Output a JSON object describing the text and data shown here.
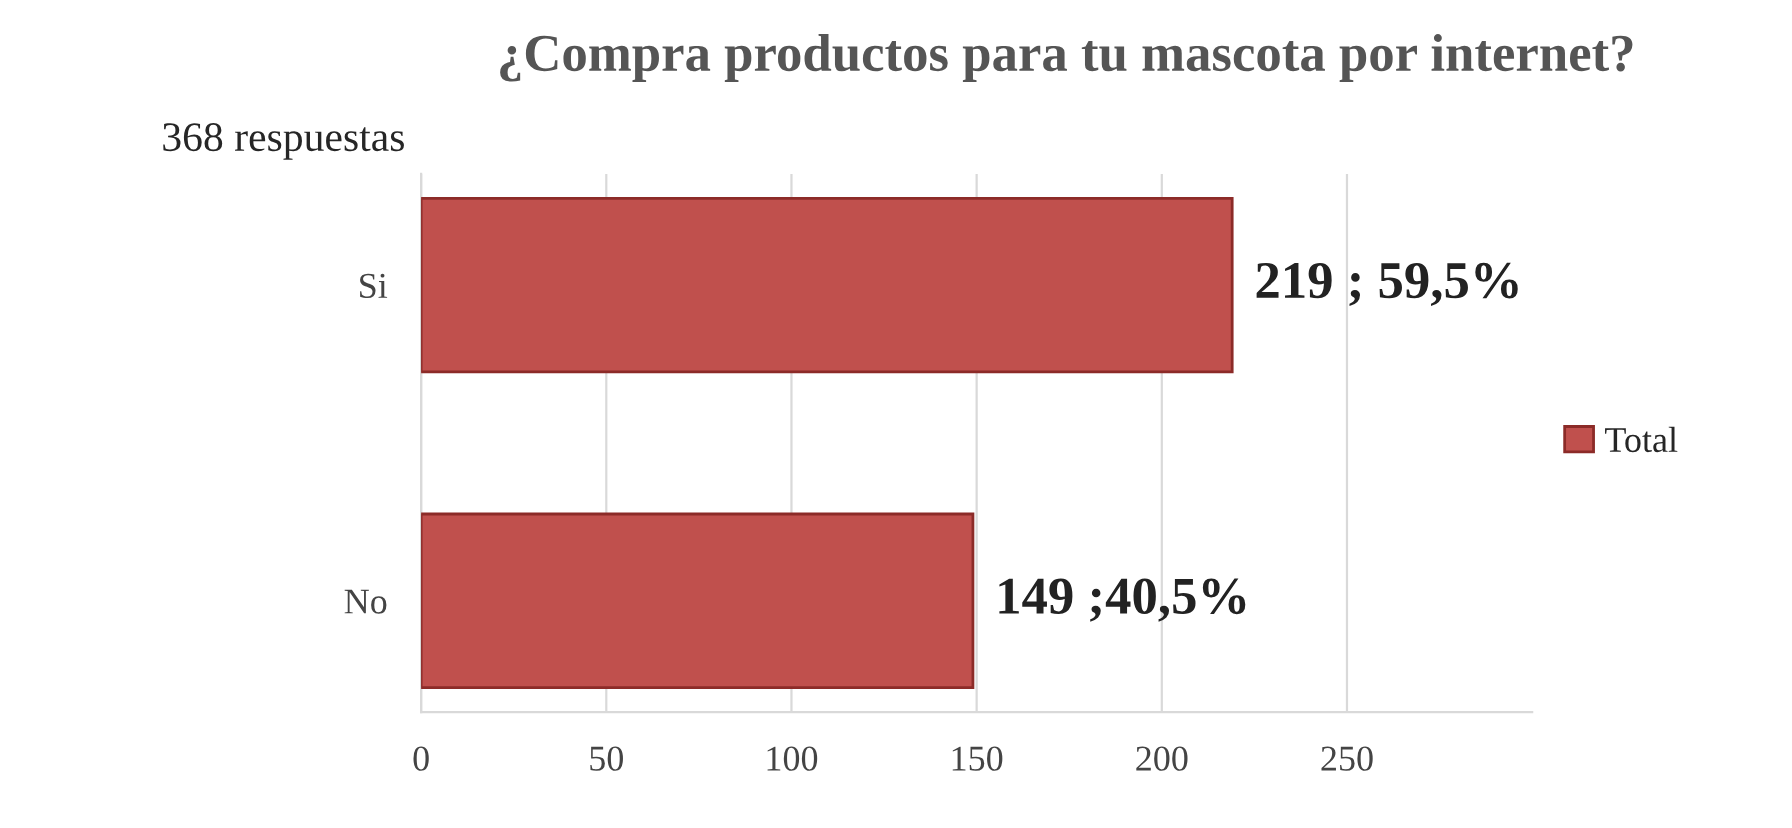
{
  "chart_data": {
    "type": "bar",
    "orientation": "horizontal",
    "title": "¿Compra productos para tu mascota por internet?",
    "annotations": [
      "368 respuestas"
    ],
    "categories": [
      "Si",
      "No"
    ],
    "series": [
      {
        "name": "Total",
        "color": "#c0504d",
        "values": [
          219,
          149
        ],
        "value_labels": [
          "219 ; 59,5%",
          "149 ;40,5%"
        ]
      }
    ],
    "xlim": [
      0,
      300
    ],
    "xticks": [
      0,
      50,
      100,
      150,
      200,
      250
    ],
    "grid": "x",
    "legend": "right"
  }
}
